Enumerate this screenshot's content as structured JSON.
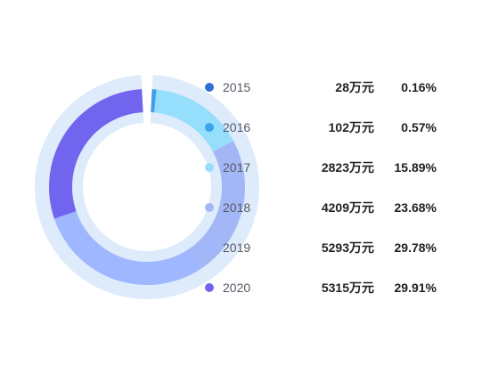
{
  "chart_data": {
    "type": "pie",
    "variant": "donut",
    "categories": [
      "2015",
      "2016",
      "2017",
      "2018",
      "2019",
      "2020"
    ],
    "values": [
      28,
      102,
      2823,
      4209,
      5293,
      5315
    ],
    "value_labels": [
      "28万元",
      "102万元",
      "2823万元",
      "4209万元",
      "5293万元",
      "5315万元"
    ],
    "percent_labels": [
      "0.16%",
      "0.57%",
      "15.89%",
      "23.68%",
      "29.78%",
      "29.91%"
    ],
    "colors": [
      "#2f6fd6",
      "#3ea3ee",
      "#96dffc",
      "#a3b7f7",
      "#9fb7ff",
      "#7164ee"
    ],
    "track_color": "#deebfb",
    "legend_position": "right"
  }
}
